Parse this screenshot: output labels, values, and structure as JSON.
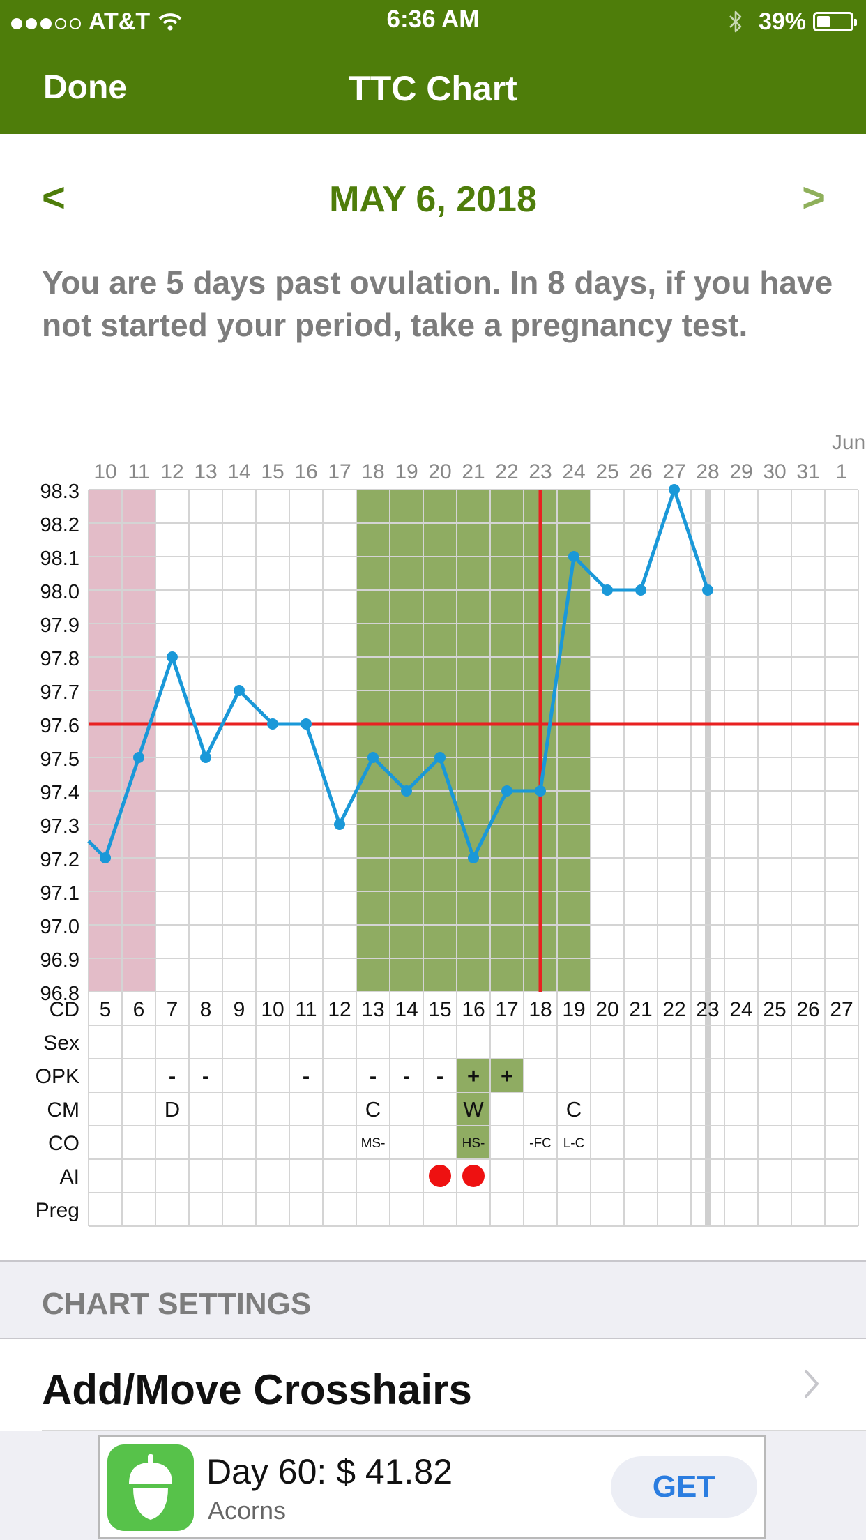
{
  "status_bar": {
    "signal_dots_filled": 3,
    "signal_dots_total": 5,
    "carrier": "AT&T",
    "time": "6:36 AM",
    "battery_percent_text": "39%",
    "battery_level": 0.39,
    "icons": [
      "wifi-icon",
      "bluetooth-icon",
      "battery-icon"
    ]
  },
  "nav": {
    "done_label": "Done",
    "title": "TTC Chart"
  },
  "date_nav": {
    "prev_label": "<",
    "next_label": ">",
    "date": "MAY 6, 2018"
  },
  "message": "You are 5 days past ovulation. In 8 days, if you have not started your period, take a pregnancy test.",
  "colors": {
    "brand_green": "#4e7d0a",
    "period_shade": "#e3bcc8",
    "fertile_shade": "#8fac62",
    "line_blue": "#1a98d8",
    "coverline_red": "#e82121",
    "ai_dot_red": "#ee1111",
    "today_marker_gray": "#cfcfcf"
  },
  "chart_data": {
    "type": "line",
    "month_label": "Jun",
    "dates": [
      "10",
      "11",
      "12",
      "13",
      "14",
      "15",
      "16",
      "17",
      "18",
      "19",
      "20",
      "21",
      "22",
      "23",
      "24",
      "25",
      "26",
      "27",
      "28",
      "29",
      "30",
      "31",
      "1"
    ],
    "cycle_days": [
      "5",
      "6",
      "7",
      "8",
      "9",
      "10",
      "11",
      "12",
      "13",
      "14",
      "15",
      "16",
      "17",
      "18",
      "19",
      "20",
      "21",
      "22",
      "23",
      "24",
      "25",
      "26",
      "27"
    ],
    "y_ticks": [
      "98.3",
      "98.2",
      "98.1",
      "98.0",
      "97.9",
      "97.8",
      "97.7",
      "97.6",
      "97.5",
      "97.4",
      "97.3",
      "97.2",
      "97.1",
      "97.0",
      "96.9",
      "96.8"
    ],
    "ylim": [
      96.8,
      98.3
    ],
    "temperatures": [
      97.2,
      97.5,
      97.8,
      97.5,
      97.7,
      97.6,
      97.6,
      97.3,
      97.5,
      97.4,
      97.5,
      97.2,
      97.4,
      97.4,
      98.1,
      98.0,
      98.0,
      98.3,
      98.0,
      null,
      null,
      null,
      null
    ],
    "incoming_temperature": 97.25,
    "coverline": 97.6,
    "ovulation_date": "23",
    "today_date": "28",
    "period_dates": [
      "10",
      "11"
    ],
    "fertile_dates": [
      "18",
      "19",
      "20",
      "21",
      "22",
      "23",
      "24"
    ],
    "rows": [
      {
        "label": "CD"
      },
      {
        "label": "Sex",
        "values": {}
      },
      {
        "label": "OPK",
        "values": {
          "12": "-",
          "13": "-",
          "16": "-",
          "18": "-",
          "19": "-",
          "20": "-",
          "21": "+",
          "22": "+"
        },
        "highlighted": [
          "21",
          "22"
        ]
      },
      {
        "label": "CM",
        "values": {
          "12": "D",
          "18": "C",
          "21": "W",
          "24": "C"
        },
        "highlighted": [
          "21"
        ]
      },
      {
        "label": "CO",
        "values": {
          "18": "MS-",
          "21": "HS-",
          "23": "-FC",
          "24": "L-C"
        },
        "highlighted": [
          "21"
        ]
      },
      {
        "label": "AI",
        "dots": [
          "20",
          "21"
        ]
      },
      {
        "label": "Preg",
        "values": {}
      }
    ]
  },
  "settings": {
    "section_title": "CHART SETTINGS",
    "crosshairs_label": "Add/Move Crosshairs"
  },
  "ad": {
    "title": "Day 60: $ 41.82",
    "subtitle": "Acorns",
    "button_label": "GET"
  }
}
